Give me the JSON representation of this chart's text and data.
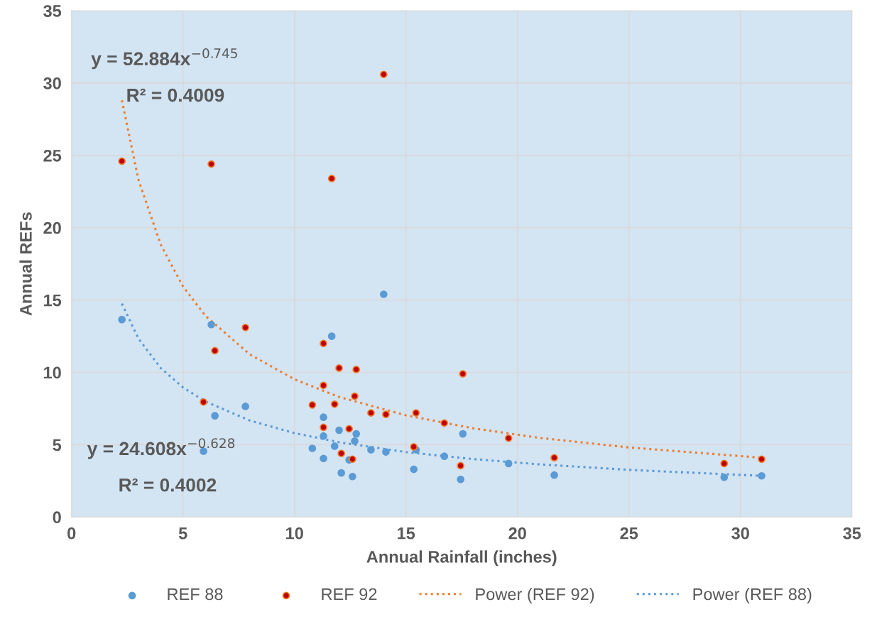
{
  "chart_data": {
    "type": "scatter",
    "xlabel": "Annual Rainfall (inches)",
    "ylabel": "Annual REFs",
    "xlim": [
      0,
      35
    ],
    "xticks": [
      0,
      5,
      10,
      15,
      20,
      25,
      30,
      35
    ],
    "ylim": [
      0,
      35
    ],
    "yticks": [
      0,
      5,
      10,
      15,
      20,
      25,
      30,
      35
    ],
    "grid": true,
    "legend": "bottom",
    "annotations": [
      "y = 52.884x$^{−0.745}$",
      "R² = 0.4009",
      "y = 24.608x$^{−0.628}$",
      "R² = 0.4002"
    ],
    "series": [
      {
        "name": "REF 88",
        "marker": "circle",
        "color": "#5b9bd5",
        "x": [
          2.26,
          5.92,
          6.27,
          6.43,
          7.8,
          10.8,
          11.3,
          11.3,
          11.3,
          11.67,
          11.8,
          12.0,
          12.1,
          12.45,
          12.6,
          12.7,
          12.77,
          13.43,
          14.0,
          14.1,
          15.35,
          15.45,
          16.72,
          17.45,
          17.55,
          19.6,
          21.65,
          29.27,
          30.95
        ],
        "values": [
          13.65,
          4.55,
          13.3,
          7.0,
          7.65,
          4.75,
          6.9,
          5.6,
          4.05,
          12.5,
          4.9,
          6.0,
          3.05,
          3.95,
          2.8,
          5.25,
          5.75,
          4.65,
          15.4,
          4.5,
          3.3,
          4.65,
          4.2,
          2.6,
          5.75,
          3.7,
          2.9,
          2.75,
          2.85
        ]
      },
      {
        "name": "REF 92",
        "marker": "circle",
        "color": "#c00000",
        "x": [
          2.26,
          5.92,
          6.27,
          6.43,
          7.8,
          10.8,
          11.3,
          11.3,
          11.3,
          11.67,
          11.8,
          12.0,
          12.1,
          12.45,
          12.6,
          12.7,
          12.77,
          13.43,
          14.0,
          14.1,
          15.35,
          15.45,
          16.72,
          17.45,
          17.55,
          19.6,
          21.65,
          29.27,
          30.95
        ],
        "values": [
          24.6,
          7.95,
          24.4,
          11.5,
          13.1,
          7.75,
          12.0,
          9.1,
          6.2,
          23.4,
          7.8,
          10.3,
          4.4,
          6.1,
          4.0,
          8.35,
          10.2,
          7.2,
          30.6,
          7.1,
          4.85,
          7.2,
          6.5,
          3.55,
          9.9,
          5.45,
          4.1,
          3.7,
          4.0
        ]
      },
      {
        "name": "Power (REF 92)",
        "type": "line",
        "line_style": "dotted",
        "color": "#ed7d31",
        "x": [
          2.26,
          3,
          4,
          5,
          6,
          8,
          10,
          12,
          15,
          18,
          21,
          25,
          30.95
        ],
        "values": [
          28.81,
          23.33,
          18.83,
          15.94,
          13.92,
          11.24,
          9.52,
          8.3,
          7.03,
          6.14,
          5.47,
          4.81,
          4.1
        ]
      },
      {
        "name": "Power (REF 88)",
        "type": "line",
        "line_style": "dotted",
        "color": "#5b9bd5",
        "x": [
          2.26,
          3,
          4,
          5,
          6,
          8,
          10,
          12,
          15,
          18,
          21,
          25,
          30.95
        ],
        "values": [
          14.75,
          12.34,
          10.3,
          8.96,
          7.99,
          6.67,
          5.8,
          5.17,
          4.49,
          4.01,
          3.64,
          3.26,
          2.85
        ]
      }
    ]
  }
}
